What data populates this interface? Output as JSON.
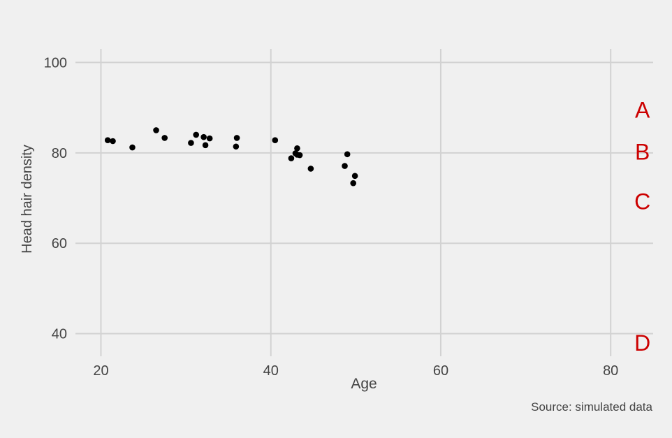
{
  "chart_data": {
    "type": "scatter",
    "title": "",
    "xlabel": "Age",
    "ylabel": "Head hair density",
    "caption": "Source: simulated data",
    "xlim": [
      17,
      85
    ],
    "ylim": [
      35,
      103
    ],
    "x_ticks": [
      20,
      40,
      60,
      80
    ],
    "y_ticks": [
      40,
      60,
      80,
      100
    ],
    "x_tick_labels": [
      "20",
      "40",
      "60",
      "80"
    ],
    "y_tick_labels": [
      "40",
      "60",
      "80",
      "100"
    ],
    "grid": true,
    "point_color": "#000000",
    "annotation_color": "#cc0000",
    "grid_color": "#d2d2d2",
    "background_color": "#f0f0f0",
    "points": [
      {
        "x": 20.8,
        "y": 82.8
      },
      {
        "x": 21.4,
        "y": 82.6
      },
      {
        "x": 23.7,
        "y": 81.2
      },
      {
        "x": 26.5,
        "y": 85.0
      },
      {
        "x": 27.5,
        "y": 83.3
      },
      {
        "x": 30.6,
        "y": 82.2
      },
      {
        "x": 31.2,
        "y": 84.0
      },
      {
        "x": 32.1,
        "y": 83.5
      },
      {
        "x": 32.3,
        "y": 81.7
      },
      {
        "x": 32.8,
        "y": 83.2
      },
      {
        "x": 35.9,
        "y": 81.4
      },
      {
        "x": 36.0,
        "y": 83.3
      },
      {
        "x": 40.5,
        "y": 82.8
      },
      {
        "x": 42.4,
        "y": 78.8
      },
      {
        "x": 42.9,
        "y": 79.9
      },
      {
        "x": 43.1,
        "y": 81.0
      },
      {
        "x": 43.1,
        "y": 79.6
      },
      {
        "x": 43.4,
        "y": 79.5
      },
      {
        "x": 44.7,
        "y": 76.5
      },
      {
        "x": 48.7,
        "y": 77.1
      },
      {
        "x": 49.0,
        "y": 79.7
      },
      {
        "x": 49.7,
        "y": 73.3
      },
      {
        "x": 49.9,
        "y": 74.9
      }
    ],
    "annotations": [
      {
        "label": "A",
        "x": 83,
        "y": 89.5
      },
      {
        "label": "B",
        "x": 83,
        "y": 80.2
      },
      {
        "label": "C",
        "x": 83,
        "y": 69.2
      },
      {
        "label": "D",
        "x": 83,
        "y": 37.9
      }
    ]
  }
}
